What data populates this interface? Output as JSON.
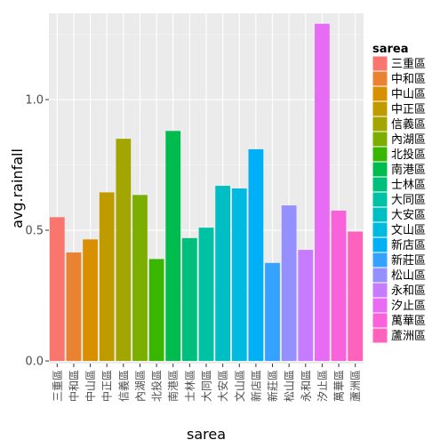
{
  "chart_data": {
    "type": "bar",
    "xlabel": "sarea",
    "ylabel": "avg.rainfall",
    "legend_title": "sarea",
    "legend_position": "right",
    "grid": true,
    "ylim": [
      -0.01,
      1.33
    ],
    "yticks": [
      {
        "value": 0.0,
        "label": "0.0"
      },
      {
        "value": 0.5,
        "label": "0.5"
      },
      {
        "value": 1.0,
        "label": "1.0"
      }
    ],
    "categories": [
      "三重區",
      "中和區",
      "中山區",
      "中正區",
      "信義區",
      "內湖區",
      "北投區",
      "南港區",
      "士林區",
      "大同區",
      "大安區",
      "文山區",
      "新店區",
      "新莊區",
      "松山區",
      "永和區",
      "汐止區",
      "萬華區",
      "蘆洲區"
    ],
    "values": [
      0.55,
      0.415,
      0.465,
      0.645,
      0.85,
      0.635,
      0.39,
      0.88,
      0.47,
      0.51,
      0.67,
      0.66,
      0.81,
      0.375,
      0.595,
      0.425,
      1.29,
      0.575,
      0.495
    ],
    "colors": [
      "#F8766D",
      "#EA8331",
      "#D89000",
      "#C09B00",
      "#A3A500",
      "#7CAE00",
      "#39B600",
      "#00BB4E",
      "#00BF7D",
      "#00C1A3",
      "#00BFC4",
      "#00BAE0",
      "#00B0F6",
      "#35A2FF",
      "#9590FF",
      "#C77CFF",
      "#E76BF3",
      "#FA62DB",
      "#FF62BC"
    ]
  }
}
